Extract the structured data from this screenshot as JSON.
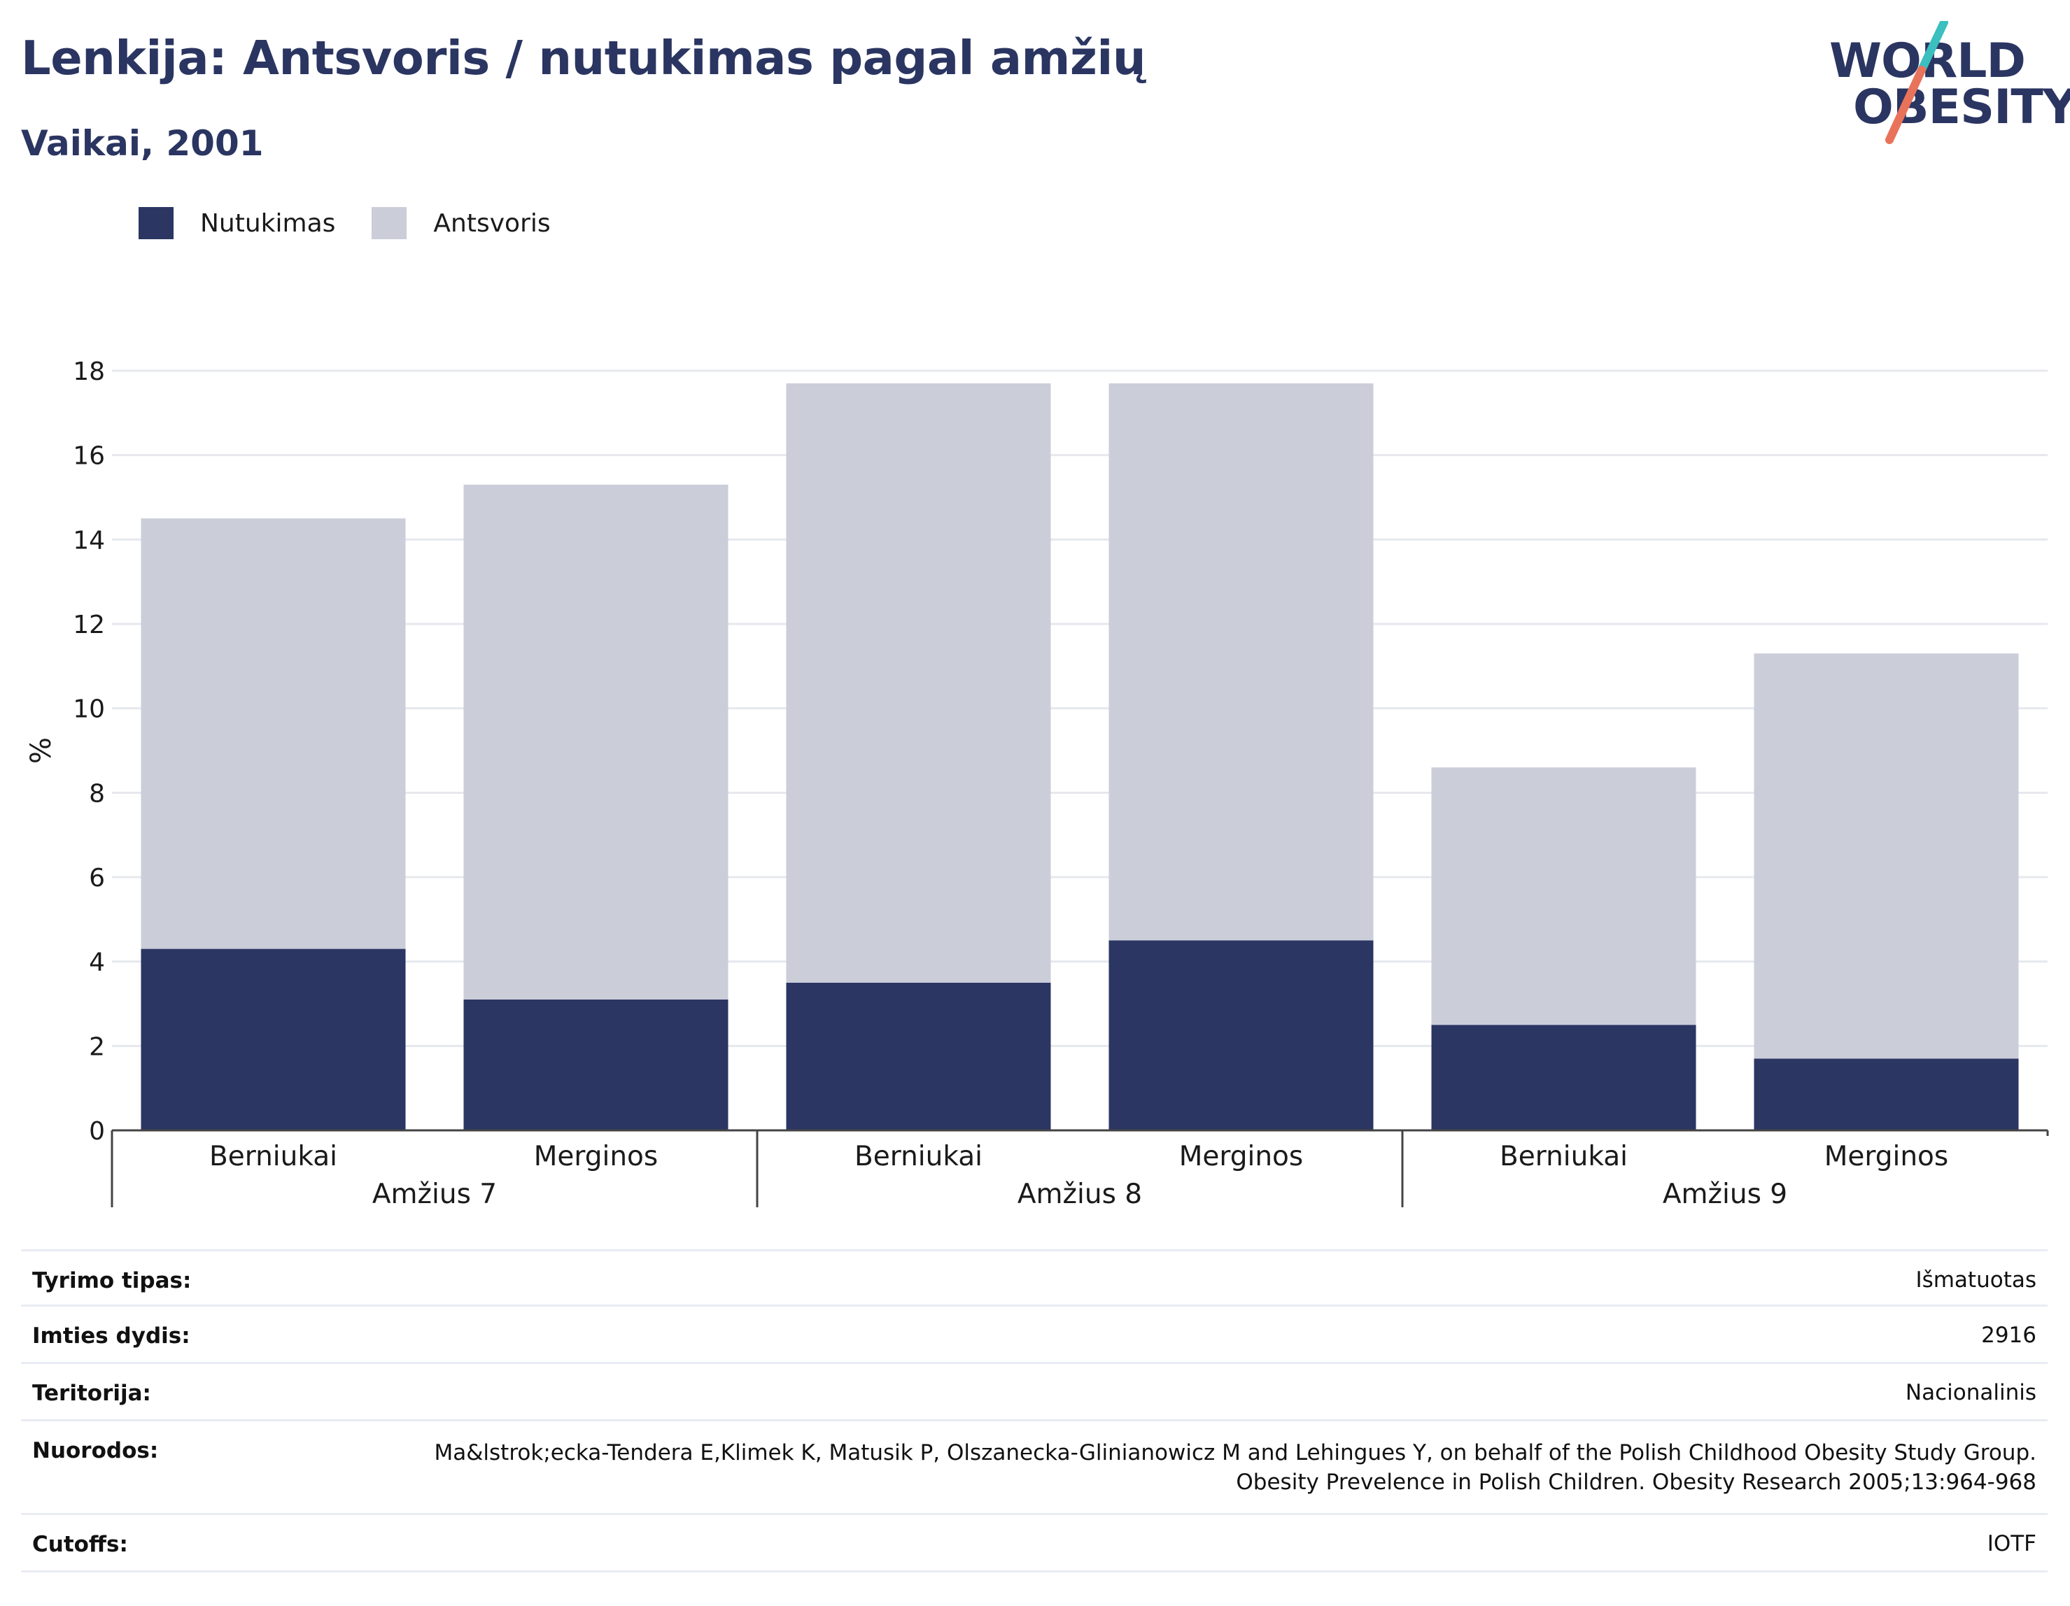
{
  "header": {
    "title": "Lenkija: Antsvoris / nutukimas pagal amžių",
    "subtitle": "Vaikai, 2001"
  },
  "logo": {
    "line1": "WORLD",
    "line2": "OBESITY",
    "colors": {
      "text": "#2b3561",
      "slash_top": "#3bbfbf",
      "slash_bottom": "#e8735a"
    }
  },
  "colors": {
    "obesity": "#2b3663",
    "overweight": "#cbcdd9",
    "grid": "#e6e8ee",
    "axis": "#444444"
  },
  "chart_data": {
    "type": "bar",
    "stacked": true,
    "ylabel": "%",
    "ylim": [
      0,
      18
    ],
    "yticks": [
      0,
      2,
      4,
      6,
      8,
      10,
      12,
      14,
      16,
      18
    ],
    "grid": true,
    "legend_position": "top-left",
    "groups": [
      {
        "label": "Amžius 7",
        "categories": [
          "Berniukai",
          "Merginos"
        ]
      },
      {
        "label": "Amžius 8",
        "categories": [
          "Berniukai",
          "Merginos"
        ]
      },
      {
        "label": "Amžius 9",
        "categories": [
          "Berniukai",
          "Merginos"
        ]
      }
    ],
    "series": [
      {
        "name": "Nutukimas",
        "values": [
          4.3,
          3.1,
          3.5,
          4.5,
          2.5,
          1.7
        ]
      },
      {
        "name": "Antsvoris",
        "values": [
          10.2,
          12.2,
          14.2,
          13.2,
          6.1,
          9.6
        ]
      }
    ]
  },
  "meta": [
    {
      "label": "Tyrimo tipas:",
      "value": "Išmatuotas"
    },
    {
      "label": "Imties dydis:",
      "value": "2916"
    },
    {
      "label": "Teritorija:",
      "value": "Nacionalinis"
    },
    {
      "label": "Nuorodos:",
      "value": "Ma&lstrok;ecka-Tendera E,Klimek K, Matusik P, Olszanecka-Glinianowicz M and Lehingues Y, on behalf of the Polish Childhood Obesity Study Group. Obesity Prevelence in Polish Children. Obesity Research 2005;13:964-968"
    },
    {
      "label": "Cutoffs:",
      "value": "IOTF"
    }
  ]
}
